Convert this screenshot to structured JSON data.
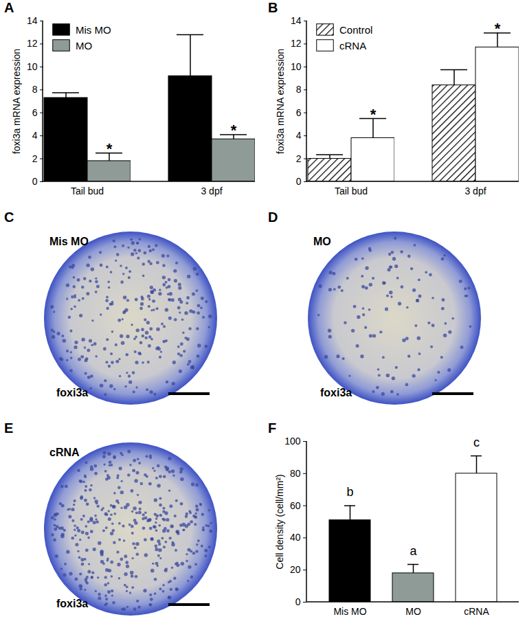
{
  "chart_data": [
    {
      "type": "bar",
      "title": "A",
      "categories": [
        "Tail bud",
        "3 dpf"
      ],
      "series": [
        {
          "name": "Mis MO",
          "color": "#000000",
          "values": [
            7.3,
            9.2
          ],
          "errors": [
            0.45,
            3.6
          ]
        },
        {
          "name": "MO",
          "color": "#8e9b96",
          "values": [
            1.8,
            3.7
          ],
          "errors": [
            0.7,
            0.4
          ],
          "annotations": [
            "*",
            "*"
          ]
        }
      ],
      "y_label": "foxi3a mRNA expression",
      "ylim": [
        0,
        14
      ],
      "yticks": [
        0,
        2,
        4,
        6,
        8,
        10,
        12,
        14
      ],
      "legend": "top-left"
    },
    {
      "type": "bar",
      "title": "B",
      "categories": [
        "Tail bud",
        "3 dpf"
      ],
      "series": [
        {
          "name": "Control",
          "color": "#000000",
          "line_style": "hatched",
          "values": [
            2.0,
            8.4
          ],
          "errors": [
            0.35,
            1.35
          ]
        },
        {
          "name": "cRNA",
          "color": "#ffffff",
          "values": [
            3.8,
            11.7
          ],
          "errors": [
            1.7,
            1.25
          ],
          "annotations": [
            "*",
            "*"
          ]
        }
      ],
      "y_label": "foxi3a mRNA expression",
      "ylim": [
        0,
        14
      ],
      "yticks": [
        0,
        2,
        4,
        6,
        8,
        10,
        12,
        14
      ],
      "legend": "top-left"
    },
    {
      "type": "bar",
      "title": "F",
      "categories": [
        "Mis MO",
        "MO",
        "cRNA"
      ],
      "values": [
        51,
        18,
        80
      ],
      "errors": [
        9,
        5.5,
        11
      ],
      "colors": [
        "#000000",
        "#8e9b96",
        "#ffffff"
      ],
      "annotations": [
        "b",
        "a",
        "c"
      ],
      "y_label": "Cell density (cell/mm²)",
      "ylim": [
        0,
        100
      ],
      "yticks": [
        0,
        20,
        40,
        60,
        80,
        100
      ]
    }
  ],
  "images": [
    {
      "title": "C",
      "label": "Mis MO",
      "stain": "foxi3a"
    },
    {
      "title": "D",
      "label": "MO",
      "stain": "foxi3a"
    },
    {
      "title": "E",
      "label": "cRNA",
      "stain": "foxi3a"
    }
  ]
}
